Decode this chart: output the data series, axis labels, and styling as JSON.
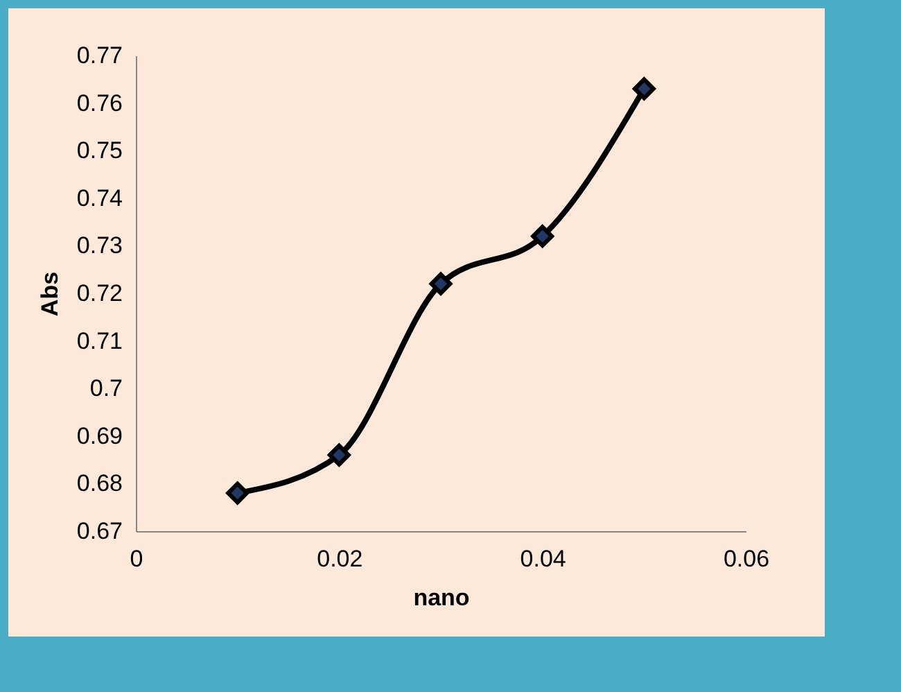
{
  "chart_data": {
    "type": "line",
    "xlabel": "nano",
    "ylabel": "Abs",
    "x": [
      0.01,
      0.02,
      0.03,
      0.04,
      0.05
    ],
    "series": [
      {
        "color": "#000000",
        "values": [
          0.678,
          0.686,
          0.722,
          0.732,
          0.763
        ]
      }
    ],
    "xlim": [
      0,
      0.06
    ],
    "xticks": [
      0,
      0.02,
      0.04,
      0.06
    ],
    "ylim": [
      0.67,
      0.77
    ],
    "yticks": [
      0.67,
      0.68,
      0.69,
      0.7,
      0.71,
      0.72,
      0.73,
      0.74,
      0.75,
      0.76,
      0.77
    ],
    "grid": false,
    "marker": "diamond",
    "line_style": "solid"
  }
}
